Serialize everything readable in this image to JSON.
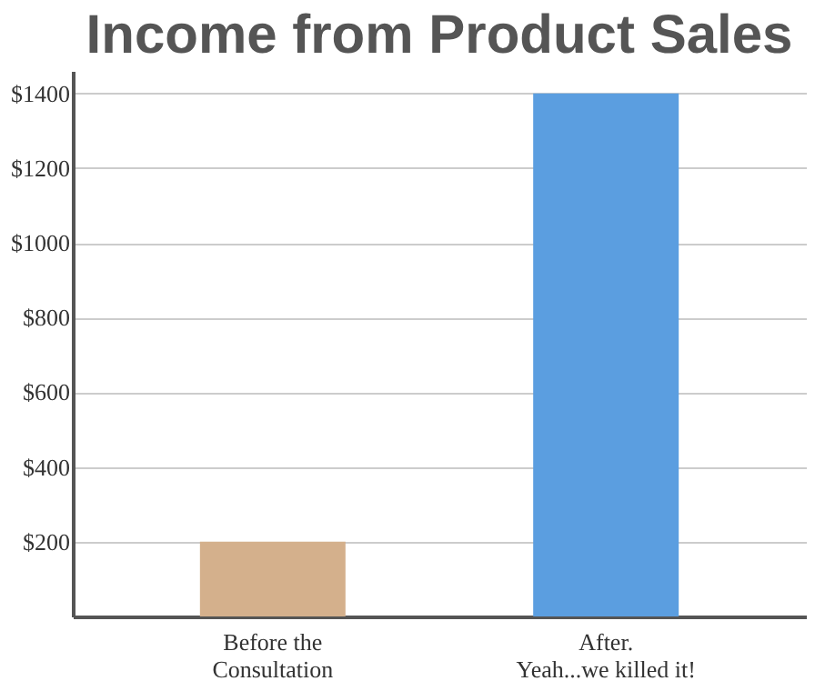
{
  "chart_data": {
    "type": "bar",
    "title": "Income from Product Sales",
    "categories": [
      "Before the\nConsultation",
      "After.\nYeah...we killed it!"
    ],
    "values": [
      200,
      1400
    ],
    "colors": [
      "#d4b08c",
      "#5b9ee0"
    ],
    "ylim": [
      0,
      1460
    ],
    "yticks": [
      {
        "value": 200,
        "label": "$200"
      },
      {
        "value": 400,
        "label": "$400"
      },
      {
        "value": 600,
        "label": "$600"
      },
      {
        "value": 800,
        "label": "$800"
      },
      {
        "value": 1000,
        "label": "$1000"
      },
      {
        "value": 1200,
        "label": "$1200"
      },
      {
        "value": 1400,
        "label": "$1400"
      }
    ],
    "grid": "y"
  }
}
